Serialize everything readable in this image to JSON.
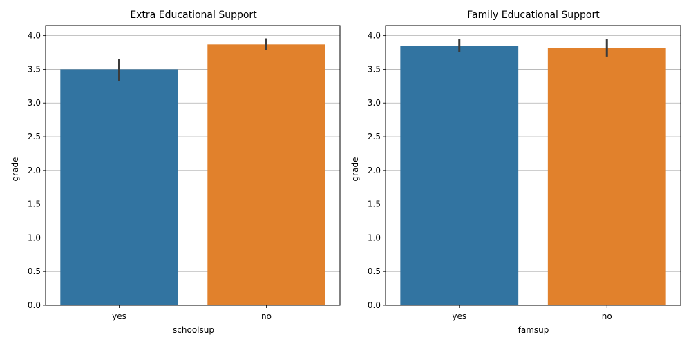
{
  "colors": {
    "yes": "#3274a1",
    "no": "#e1812c",
    "errorbar": "#3b3b3b",
    "grid": "#b0b0b0",
    "axis": "#000000"
  },
  "chart_data": [
    {
      "type": "bar",
      "title": "Extra Educational Support",
      "xlabel": "schoolsup",
      "ylabel": "grade",
      "categories": [
        "yes",
        "no"
      ],
      "values": [
        3.5,
        3.87
      ],
      "error": [
        [
          3.33,
          3.65
        ],
        [
          3.79,
          3.96
        ]
      ],
      "ylim": [
        0,
        4.15
      ],
      "yticks": [
        "0.0",
        "0.5",
        "1.0",
        "1.5",
        "2.0",
        "2.5",
        "3.0",
        "3.5",
        "4.0"
      ],
      "grid": "horizontal",
      "bar_colors": [
        "#3274a1",
        "#e1812c"
      ]
    },
    {
      "type": "bar",
      "title": "Family Educational Support",
      "xlabel": "famsup",
      "ylabel": "grade",
      "categories": [
        "yes",
        "no"
      ],
      "values": [
        3.85,
        3.82
      ],
      "error": [
        [
          3.76,
          3.95
        ],
        [
          3.69,
          3.95
        ]
      ],
      "ylim": [
        0,
        4.15
      ],
      "yticks": [
        "0.0",
        "0.5",
        "1.0",
        "1.5",
        "2.0",
        "2.5",
        "3.0",
        "3.5",
        "4.0"
      ],
      "grid": "horizontal",
      "bar_colors": [
        "#3274a1",
        "#e1812c"
      ]
    }
  ]
}
